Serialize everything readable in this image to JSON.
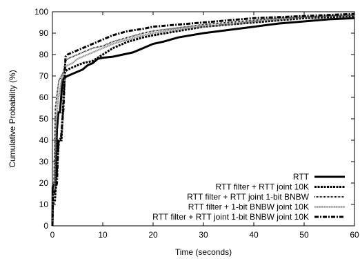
{
  "chart_data": {
    "type": "line",
    "title": "",
    "xlabel": "Time (seconds)",
    "ylabel": "Cumulative Probability (%)",
    "xlim": [
      0,
      60
    ],
    "ylim": [
      0,
      100
    ],
    "xticks": [
      0,
      10,
      20,
      30,
      40,
      50,
      60
    ],
    "yticks": [
      0,
      10,
      20,
      30,
      40,
      50,
      60,
      70,
      80,
      90,
      100
    ],
    "grid": false,
    "legend_position": "bottom-right",
    "series": [
      {
        "name": "RTT",
        "style": "solid-thick",
        "color": "#000000",
        "points": [
          [
            0,
            0
          ],
          [
            0.05,
            18
          ],
          [
            0.3,
            19
          ],
          [
            0.6,
            19
          ],
          [
            0.9,
            45
          ],
          [
            1.2,
            53
          ],
          [
            1.5,
            53
          ],
          [
            1.8,
            62
          ],
          [
            2.0,
            68
          ],
          [
            2.3,
            69
          ],
          [
            3,
            70
          ],
          [
            4,
            71
          ],
          [
            5,
            72
          ],
          [
            6,
            73
          ],
          [
            7,
            75
          ],
          [
            8,
            76
          ],
          [
            9,
            78
          ],
          [
            10,
            78.5
          ],
          [
            12,
            79
          ],
          [
            14,
            80
          ],
          [
            16,
            81
          ],
          [
            18,
            83
          ],
          [
            20,
            85
          ],
          [
            22,
            86
          ],
          [
            25,
            88
          ],
          [
            30,
            90
          ],
          [
            35,
            91.5
          ],
          [
            40,
            93
          ],
          [
            45,
            94.5
          ],
          [
            50,
            95.5
          ],
          [
            55,
            96.5
          ],
          [
            60,
            97
          ]
        ]
      },
      {
        "name": "RTT filter + RTT joint 10K",
        "style": "dashed",
        "color": "#000000",
        "points": [
          [
            0,
            0
          ],
          [
            0.1,
            10
          ],
          [
            0.5,
            12
          ],
          [
            1.0,
            30
          ],
          [
            1.3,
            40
          ],
          [
            1.8,
            40
          ],
          [
            2.2,
            60
          ],
          [
            2.5,
            72
          ],
          [
            3,
            73
          ],
          [
            4,
            74
          ],
          [
            5,
            75
          ],
          [
            6,
            76
          ],
          [
            8,
            77
          ],
          [
            10,
            80
          ],
          [
            12,
            83
          ],
          [
            15,
            86
          ],
          [
            18,
            88
          ],
          [
            20,
            89
          ],
          [
            25,
            91
          ],
          [
            30,
            93
          ],
          [
            35,
            94
          ],
          [
            40,
            95
          ],
          [
            45,
            96
          ],
          [
            50,
            97
          ],
          [
            55,
            97.5
          ],
          [
            60,
            98
          ]
        ]
      },
      {
        "name": "RTT filter + RTT joint 1-bit BNBW",
        "style": "dotted",
        "color": "#000000",
        "points": [
          [
            0,
            0
          ],
          [
            0.1,
            17
          ],
          [
            0.3,
            20
          ],
          [
            0.6,
            55
          ],
          [
            1.0,
            63
          ],
          [
            1.3,
            68
          ],
          [
            1.8,
            70
          ],
          [
            2.2,
            72
          ],
          [
            2.6,
            77
          ],
          [
            3,
            78
          ],
          [
            4,
            79
          ],
          [
            5,
            80
          ],
          [
            6,
            81
          ],
          [
            8,
            83
          ],
          [
            10,
            84
          ],
          [
            12,
            86
          ],
          [
            15,
            88
          ],
          [
            18,
            90
          ],
          [
            20,
            91
          ],
          [
            25,
            92.5
          ],
          [
            30,
            94
          ],
          [
            35,
            95
          ],
          [
            40,
            96
          ],
          [
            45,
            97
          ],
          [
            50,
            97.5
          ],
          [
            55,
            98
          ],
          [
            60,
            98.5
          ]
        ]
      },
      {
        "name": "RTT filter + 1-bit BNBW joint 10K",
        "style": "double-thin",
        "color": "#777777",
        "points": [
          [
            0,
            0
          ],
          [
            0.1,
            14
          ],
          [
            0.4,
            16
          ],
          [
            0.8,
            50
          ],
          [
            1.2,
            60
          ],
          [
            1.6,
            65
          ],
          [
            2.0,
            70
          ],
          [
            2.5,
            74
          ],
          [
            3,
            75
          ],
          [
            4,
            76
          ],
          [
            5,
            78
          ],
          [
            6,
            79
          ],
          [
            8,
            81
          ],
          [
            10,
            83
          ],
          [
            12,
            85
          ],
          [
            15,
            87
          ],
          [
            18,
            89
          ],
          [
            20,
            90
          ],
          [
            25,
            92
          ],
          [
            30,
            93
          ],
          [
            35,
            94
          ],
          [
            40,
            95.5
          ],
          [
            45,
            96.5
          ],
          [
            50,
            97.5
          ],
          [
            55,
            98
          ],
          [
            60,
            98.5
          ]
        ]
      },
      {
        "name": "RTT filter + RTT joint 1-bit BNBW joint 10K",
        "style": "dash-dot",
        "color": "#000000",
        "points": [
          [
            0,
            0
          ],
          [
            0.1,
            15
          ],
          [
            0.5,
            16
          ],
          [
            0.9,
            20
          ],
          [
            1.2,
            40
          ],
          [
            1.7,
            41
          ],
          [
            2.2,
            55
          ],
          [
            2.6,
            79
          ],
          [
            3,
            80
          ],
          [
            4,
            81
          ],
          [
            5,
            82
          ],
          [
            6,
            83
          ],
          [
            8,
            85
          ],
          [
            10,
            87
          ],
          [
            12,
            89
          ],
          [
            15,
            91
          ],
          [
            18,
            92
          ],
          [
            20,
            93
          ],
          [
            25,
            94
          ],
          [
            30,
            95
          ],
          [
            35,
            96
          ],
          [
            40,
            97
          ],
          [
            45,
            97.5
          ],
          [
            50,
            98
          ],
          [
            55,
            98.5
          ],
          [
            60,
            99
          ]
        ]
      }
    ]
  }
}
